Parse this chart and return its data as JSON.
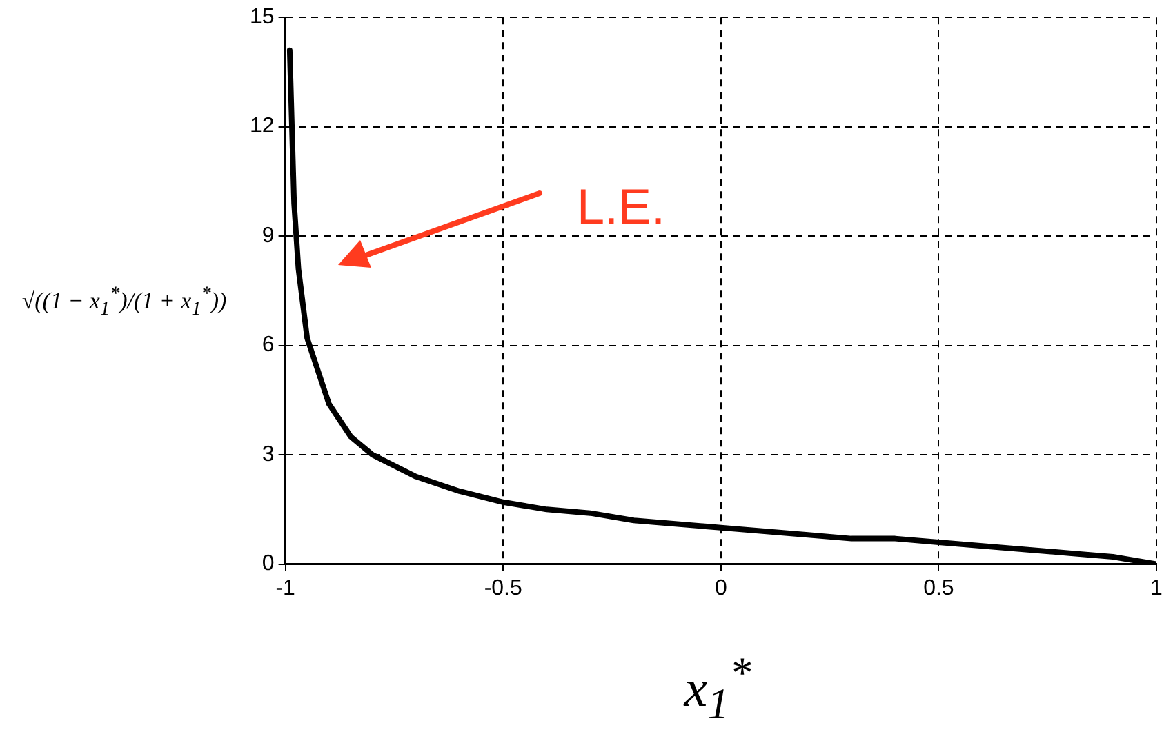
{
  "chart_data": {
    "type": "line",
    "xlabel": "x$_{1}$$^{*}$",
    "ylabel": "√((1 − x$_{1}$$^{*}$)/(1 + x$_{1}$$^{*}$))",
    "series": [
      {
        "color": "#000000",
        "x": [
          -0.99,
          -0.98,
          -0.97,
          -0.95,
          -0.9,
          -0.85,
          -0.8,
          -0.7,
          -0.6,
          -0.5,
          -0.4,
          -0.3,
          -0.2,
          -0.1,
          0,
          0.1,
          0.2,
          0.3,
          0.4,
          0.5,
          0.6,
          0.7,
          0.8,
          0.9,
          1
        ],
        "values": [
          14.1,
          9.9,
          8.1,
          6.2,
          4.4,
          3.5,
          3,
          2.4,
          2,
          1.7,
          1.5,
          1.4,
          1.2,
          1.1,
          1,
          0.9,
          0.8,
          0.7,
          0.7,
          0.6,
          0.5,
          0.4,
          0.3,
          0.2,
          0
        ]
      }
    ],
    "xlim": [
      -1,
      1
    ],
    "xticks": [
      -1,
      -0.5,
      0,
      0.5,
      1
    ],
    "ylim": [
      0,
      15
    ],
    "yticks": [
      0,
      3,
      6,
      9,
      12,
      15
    ],
    "grid": true,
    "line_style": "solid",
    "marker": "none",
    "legend": false,
    "annotations": [
      "L.E."
    ]
  }
}
